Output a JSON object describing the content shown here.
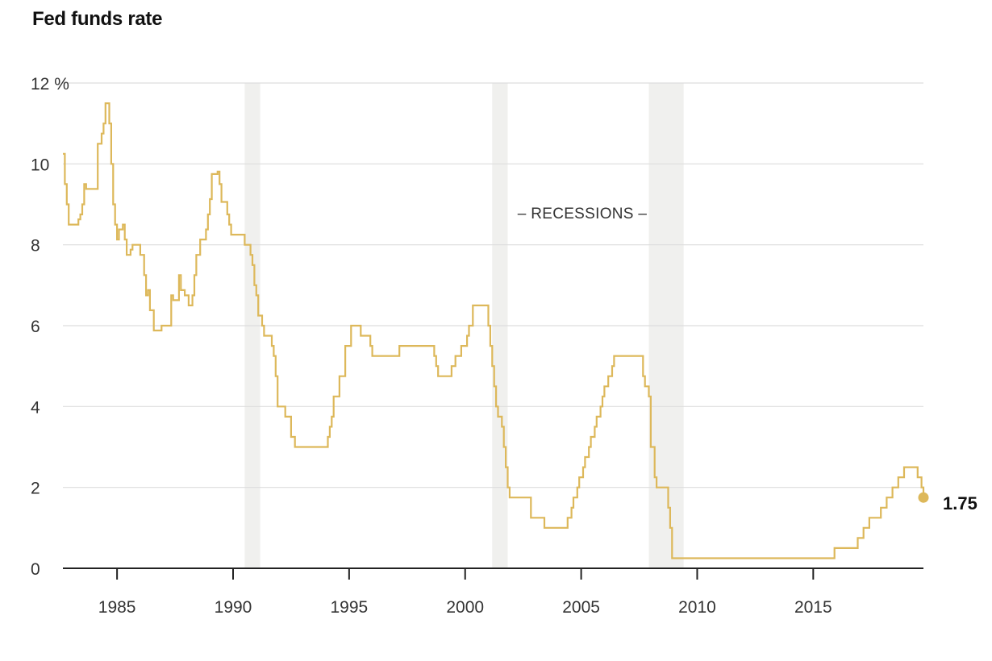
{
  "title": "Fed funds rate",
  "recession_label": "– RECESSIONS –",
  "end_value_label": "1.75",
  "colors": {
    "line": "#DDB85A",
    "recession": "#F0F0EE",
    "grid": "#DDDDDD",
    "axis": "#222222"
  },
  "chart_data": {
    "type": "line",
    "title": "Fed funds rate",
    "xlim": [
      "1982-09",
      "2019-10"
    ],
    "ylim": [
      0,
      12
    ],
    "yticks": [
      0,
      2,
      4,
      6,
      8,
      10,
      12
    ],
    "ytick_labels": [
      "0",
      "2",
      "4",
      "6",
      "8",
      "10",
      "12 %"
    ],
    "xticks": [
      "1985",
      "1990",
      "1995",
      "2000",
      "2005",
      "2010",
      "2015"
    ],
    "grid": true,
    "recessions": [
      {
        "start": "1990-07",
        "end": "1991-03"
      },
      {
        "start": "2001-03",
        "end": "2001-11"
      },
      {
        "start": "2007-12",
        "end": "2009-06"
      }
    ],
    "series": [
      {
        "step": true,
        "points": [
          [
            "1982-09",
            10.25
          ],
          [
            "1982-10",
            9.5
          ],
          [
            "1982-11",
            9.0
          ],
          [
            "1982-12",
            8.5
          ],
          [
            "1983-05",
            8.63
          ],
          [
            "1983-06",
            8.75
          ],
          [
            "1983-07",
            9.0
          ],
          [
            "1983-08",
            9.5
          ],
          [
            "1983-09",
            9.38
          ],
          [
            "1984-03",
            10.5
          ],
          [
            "1984-05",
            10.75
          ],
          [
            "1984-06",
            11.0
          ],
          [
            "1984-07",
            11.5
          ],
          [
            "1984-09",
            11.0
          ],
          [
            "1984-10",
            10.0
          ],
          [
            "1984-11",
            9.0
          ],
          [
            "1984-12",
            8.5
          ],
          [
            "1985-01",
            8.13
          ],
          [
            "1985-02",
            8.38
          ],
          [
            "1985-04",
            8.5
          ],
          [
            "1985-05",
            8.13
          ],
          [
            "1985-06",
            7.75
          ],
          [
            "1985-08",
            7.88
          ],
          [
            "1985-09",
            8.0
          ],
          [
            "1986-01",
            7.75
          ],
          [
            "1986-03",
            7.25
          ],
          [
            "1986-04",
            6.75
          ],
          [
            "1986-05",
            6.88
          ],
          [
            "1986-06",
            6.38
          ],
          [
            "1986-08",
            5.88
          ],
          [
            "1986-12",
            6.0
          ],
          [
            "1987-05",
            6.75
          ],
          [
            "1987-06",
            6.63
          ],
          [
            "1987-09",
            7.25
          ],
          [
            "1987-10",
            6.88
          ],
          [
            "1987-12",
            6.75
          ],
          [
            "1988-02",
            6.5
          ],
          [
            "1988-04",
            6.75
          ],
          [
            "1988-05",
            7.25
          ],
          [
            "1988-06",
            7.75
          ],
          [
            "1988-08",
            8.13
          ],
          [
            "1988-11",
            8.38
          ],
          [
            "1988-12",
            8.75
          ],
          [
            "1989-01",
            9.13
          ],
          [
            "1989-02",
            9.75
          ],
          [
            "1989-05",
            9.81
          ],
          [
            "1989-06",
            9.5
          ],
          [
            "1989-07",
            9.06
          ],
          [
            "1989-10",
            8.75
          ],
          [
            "1989-11",
            8.5
          ],
          [
            "1989-12",
            8.25
          ],
          [
            "1990-07",
            8.0
          ],
          [
            "1990-10",
            7.75
          ],
          [
            "1990-11",
            7.5
          ],
          [
            "1990-12",
            7.0
          ],
          [
            "1991-01",
            6.75
          ],
          [
            "1991-02",
            6.25
          ],
          [
            "1991-04",
            6.0
          ],
          [
            "1991-05",
            5.75
          ],
          [
            "1991-09",
            5.5
          ],
          [
            "1991-10",
            5.25
          ],
          [
            "1991-11",
            4.75
          ],
          [
            "1991-12",
            4.0
          ],
          [
            "1992-04",
            3.75
          ],
          [
            "1992-07",
            3.25
          ],
          [
            "1992-09",
            3.0
          ],
          [
            "1994-02",
            3.25
          ],
          [
            "1994-03",
            3.5
          ],
          [
            "1994-04",
            3.75
          ],
          [
            "1994-05",
            4.25
          ],
          [
            "1994-08",
            4.75
          ],
          [
            "1994-11",
            5.5
          ],
          [
            "1995-02",
            6.0
          ],
          [
            "1995-07",
            5.75
          ],
          [
            "1995-12",
            5.5
          ],
          [
            "1996-01",
            5.25
          ],
          [
            "1997-03",
            5.5
          ],
          [
            "1998-09",
            5.25
          ],
          [
            "1998-10",
            5.0
          ],
          [
            "1998-11",
            4.75
          ],
          [
            "1999-06",
            5.0
          ],
          [
            "1999-08",
            5.25
          ],
          [
            "1999-11",
            5.5
          ],
          [
            "2000-02",
            5.75
          ],
          [
            "2000-03",
            6.0
          ],
          [
            "2000-05",
            6.5
          ],
          [
            "2001-01",
            6.0
          ],
          [
            "2001-02",
            5.5
          ],
          [
            "2001-03",
            5.0
          ],
          [
            "2001-04",
            4.5
          ],
          [
            "2001-05",
            4.0
          ],
          [
            "2001-06",
            3.75
          ],
          [
            "2001-08",
            3.5
          ],
          [
            "2001-09",
            3.0
          ],
          [
            "2001-10",
            2.5
          ],
          [
            "2001-11",
            2.0
          ],
          [
            "2001-12",
            1.75
          ],
          [
            "2002-11",
            1.25
          ],
          [
            "2003-06",
            1.0
          ],
          [
            "2004-06",
            1.25
          ],
          [
            "2004-08",
            1.5
          ],
          [
            "2004-09",
            1.75
          ],
          [
            "2004-11",
            2.0
          ],
          [
            "2004-12",
            2.25
          ],
          [
            "2005-02",
            2.5
          ],
          [
            "2005-03",
            2.75
          ],
          [
            "2005-05",
            3.0
          ],
          [
            "2005-06",
            3.25
          ],
          [
            "2005-08",
            3.5
          ],
          [
            "2005-09",
            3.75
          ],
          [
            "2005-11",
            4.0
          ],
          [
            "2005-12",
            4.25
          ],
          [
            "2006-01",
            4.5
          ],
          [
            "2006-03",
            4.75
          ],
          [
            "2006-05",
            5.0
          ],
          [
            "2006-06",
            5.25
          ],
          [
            "2007-09",
            4.75
          ],
          [
            "2007-10",
            4.5
          ],
          [
            "2007-12",
            4.25
          ],
          [
            "2008-01",
            3.0
          ],
          [
            "2008-03",
            2.25
          ],
          [
            "2008-04",
            2.0
          ],
          [
            "2008-10",
            1.5
          ],
          [
            "2008-11",
            1.0
          ],
          [
            "2008-12",
            0.25
          ],
          [
            "2015-12",
            0.5
          ],
          [
            "2016-12",
            0.75
          ],
          [
            "2017-03",
            1.0
          ],
          [
            "2017-06",
            1.25
          ],
          [
            "2017-12",
            1.5
          ],
          [
            "2018-03",
            1.75
          ],
          [
            "2018-06",
            2.0
          ],
          [
            "2018-09",
            2.25
          ],
          [
            "2018-12",
            2.5
          ],
          [
            "2019-07",
            2.25
          ],
          [
            "2019-09",
            2.0
          ],
          [
            "2019-10",
            1.75
          ]
        ]
      }
    ],
    "end_point": {
      "x": "2019-10",
      "y": 1.75
    }
  }
}
